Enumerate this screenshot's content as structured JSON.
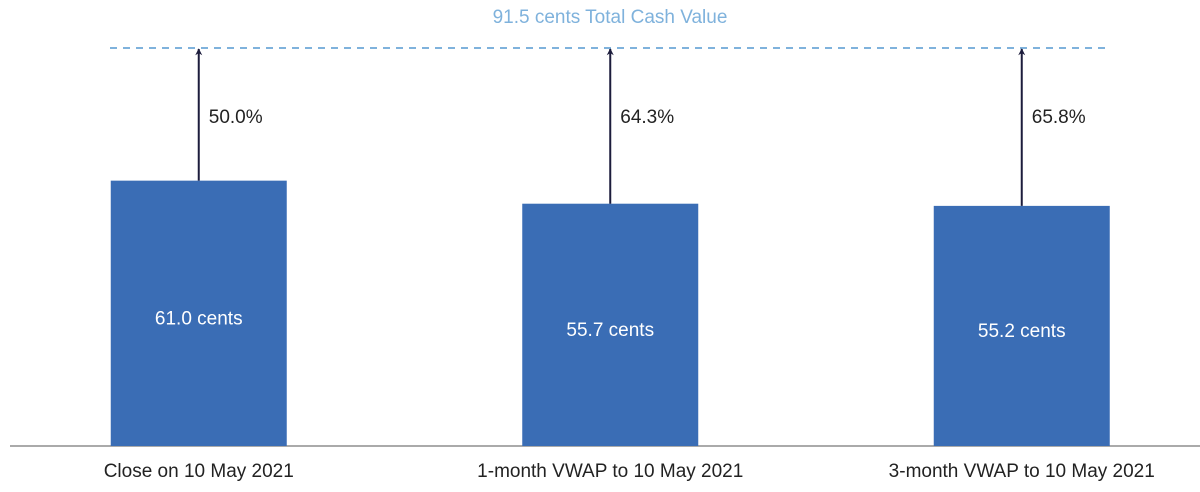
{
  "chart_data": {
    "type": "bar",
    "categories": [
      "Close on 10 May 2021",
      "1-month VWAP to 10 May 2021",
      "3-month VWAP to 10 May 2021"
    ],
    "values": [
      61.0,
      55.7,
      55.2
    ],
    "value_labels": [
      "61.0 cents",
      "55.7 cents",
      "55.2 cents"
    ],
    "color": "#3a6db5",
    "ylim": [
      0,
      100
    ],
    "reference_line": {
      "value": 91.5,
      "label": "91.5 cents Total Cash Value",
      "color": "#7fb2dc"
    },
    "premiums": {
      "values": [
        50.0,
        64.3,
        65.8
      ],
      "labels": [
        "50.0%",
        "64.3%",
        "65.8%"
      ],
      "color": "#1c1c3c"
    }
  }
}
